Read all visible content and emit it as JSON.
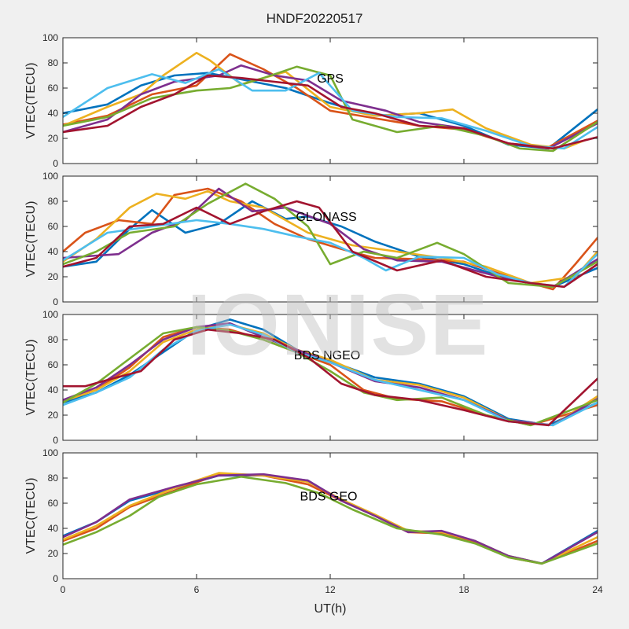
{
  "figure_title": "HNDF20220517",
  "watermark": "IONISE",
  "chart_data": [
    {
      "type": "line",
      "annotation": "GPS",
      "ylabel": "VTEC(TECU)",
      "xlabel": "",
      "xlim": [
        0,
        24
      ],
      "ylim": [
        0,
        100
      ],
      "xticks": [
        0,
        6,
        12,
        18,
        24
      ],
      "yticks": [
        0,
        20,
        40,
        60,
        80,
        100
      ],
      "grid": false,
      "series": [
        {
          "color": "#0072BD",
          "x": [
            0,
            2,
            3.5,
            5,
            6.5,
            8,
            10,
            12,
            14,
            16,
            18,
            20,
            21.8,
            24
          ],
          "y": [
            40,
            47,
            62,
            70,
            72,
            67,
            60,
            48,
            38,
            40,
            30,
            15,
            12,
            43
          ]
        },
        {
          "color": "#D95319",
          "x": [
            0,
            2,
            4,
            6,
            7.5,
            9,
            10.5,
            12,
            14,
            16,
            18,
            20,
            21.8,
            24
          ],
          "y": [
            31,
            38,
            55,
            62,
            87,
            75,
            60,
            42,
            36,
            30,
            27,
            16,
            13,
            34
          ]
        },
        {
          "color": "#EDB120",
          "x": [
            0,
            2,
            3.5,
            4.5,
            6,
            6.6,
            8,
            10,
            12,
            14,
            16,
            17.5,
            19,
            21,
            22.5,
            23.5
          ],
          "y": [
            30,
            45,
            55,
            70,
            88,
            82,
            63,
            73,
            45,
            38,
            40,
            43,
            28,
            15,
            12,
            19
          ]
        },
        {
          "color": "#7E2F8E",
          "x": [
            0,
            2,
            3.5,
            5,
            7,
            8,
            9.5,
            11,
            12.5,
            14.5,
            16,
            18,
            20,
            21.8,
            24
          ],
          "y": [
            25,
            35,
            55,
            65,
            70,
            78,
            70,
            66,
            50,
            42,
            33,
            28,
            16,
            12,
            32
          ]
        },
        {
          "color": "#77AC30",
          "x": [
            0,
            2,
            4,
            6,
            7.5,
            9,
            10.5,
            12,
            13,
            15,
            17,
            19,
            20.5,
            22,
            24
          ],
          "y": [
            30,
            37,
            52,
            58,
            60,
            68,
            77,
            70,
            35,
            25,
            30,
            22,
            12,
            10,
            33
          ]
        },
        {
          "color": "#4DBEEE",
          "x": [
            0,
            2,
            4,
            5.5,
            7,
            8.5,
            10,
            11.5,
            13,
            15,
            17,
            19,
            21,
            22.5,
            24
          ],
          "y": [
            37,
            60,
            71,
            64,
            75,
            58,
            58,
            72,
            42,
            37,
            36,
            26,
            14,
            12,
            29
          ]
        },
        {
          "color": "#A2142F",
          "x": [
            0,
            2,
            3.5,
            5,
            6.5,
            8,
            9.5,
            11,
            12.5,
            14,
            16,
            18,
            20,
            22,
            24
          ],
          "y": [
            25,
            30,
            45,
            55,
            70,
            68,
            65,
            62,
            45,
            40,
            30,
            28,
            16,
            12,
            21
          ]
        }
      ]
    },
    {
      "type": "line",
      "annotation": "GLONASS",
      "ylabel": "VTEC(TECU)",
      "xlabel": "",
      "xlim": [
        0,
        24
      ],
      "ylim": [
        0,
        100
      ],
      "xticks": [
        0,
        6,
        12,
        18,
        24
      ],
      "yticks": [
        0,
        20,
        40,
        60,
        80,
        100
      ],
      "grid": false,
      "series": [
        {
          "color": "#0072BD",
          "x": [
            0,
            1.5,
            3,
            4,
            5.5,
            7,
            8.5,
            10,
            11,
            12.5,
            14,
            16,
            18,
            20,
            22,
            24
          ],
          "y": [
            28,
            32,
            58,
            73,
            55,
            62,
            80,
            66,
            68,
            60,
            48,
            36,
            30,
            18,
            12,
            27
          ]
        },
        {
          "color": "#D95319",
          "x": [
            0,
            1,
            2.5,
            4,
            5,
            6.5,
            8,
            9.5,
            11,
            12.5,
            14,
            16,
            18,
            20,
            22,
            23,
            24
          ],
          "y": [
            40,
            55,
            65,
            62,
            85,
            90,
            80,
            62,
            50,
            42,
            35,
            34,
            32,
            20,
            10,
            30,
            51
          ]
        },
        {
          "color": "#EDB120",
          "x": [
            0,
            1.5,
            3,
            4.2,
            5.5,
            6.5,
            7.5,
            9,
            11,
            13,
            15,
            17,
            19,
            21,
            23,
            24
          ],
          "y": [
            32,
            50,
            75,
            86,
            82,
            88,
            80,
            75,
            55,
            45,
            40,
            35,
            28,
            15,
            20,
            40
          ]
        },
        {
          "color": "#7E2F8E",
          "x": [
            0,
            2.5,
            4,
            5.5,
            7,
            8.5,
            10,
            12,
            13.5,
            15,
            17,
            18.5,
            20,
            22,
            24
          ],
          "y": [
            35,
            38,
            55,
            65,
            90,
            72,
            75,
            62,
            42,
            33,
            32,
            25,
            18,
            12,
            34
          ]
        },
        {
          "color": "#77AC30",
          "x": [
            0,
            1.5,
            3,
            5,
            6.5,
            8.2,
            9.5,
            11,
            12,
            13.5,
            15,
            16.8,
            18,
            20,
            22,
            24
          ],
          "y": [
            30,
            40,
            55,
            60,
            78,
            94,
            82,
            60,
            30,
            40,
            35,
            47,
            38,
            15,
            12,
            32
          ]
        },
        {
          "color": "#4DBEEE",
          "x": [
            0,
            2,
            4,
            6,
            7.5,
            9,
            10.5,
            12,
            13.5,
            14.5,
            16,
            18,
            19.5,
            21,
            22.5,
            24
          ],
          "y": [
            33,
            55,
            60,
            65,
            62,
            58,
            52,
            47,
            35,
            25,
            36,
            35,
            22,
            15,
            12,
            38
          ]
        },
        {
          "color": "#A2142F",
          "x": [
            0,
            1.5,
            3,
            4.5,
            6,
            7.5,
            9,
            10.5,
            11.5,
            13,
            15,
            17,
            19,
            21,
            22.5,
            24
          ],
          "y": [
            28,
            35,
            60,
            62,
            75,
            62,
            72,
            80,
            75,
            40,
            25,
            33,
            20,
            15,
            12,
            30
          ]
        }
      ]
    },
    {
      "type": "line",
      "annotation": "BDS NGEO",
      "ylabel": "VTEC(TECU)",
      "xlabel": "",
      "xlim": [
        0,
        24
      ],
      "ylim": [
        0,
        100
      ],
      "xticks": [
        0,
        6,
        12,
        18,
        24
      ],
      "yticks": [
        0,
        20,
        40,
        60,
        80,
        100
      ],
      "grid": false,
      "series": [
        {
          "color": "#0072BD",
          "x": [
            0,
            1.5,
            3,
            4.5,
            6,
            7.5,
            9,
            10.5,
            12,
            14,
            16,
            18,
            20,
            21.8,
            24
          ],
          "y": [
            30,
            38,
            52,
            70,
            88,
            96,
            88,
            72,
            63,
            50,
            45,
            35,
            17,
            12,
            30
          ]
        },
        {
          "color": "#D95319",
          "x": [
            0,
            1.5,
            3,
            4.5,
            6,
            7.5,
            9,
            10.5,
            12,
            13.5,
            15,
            17,
            19,
            21,
            24
          ],
          "y": [
            32,
            40,
            58,
            82,
            90,
            88,
            80,
            70,
            60,
            40,
            33,
            31,
            20,
            12,
            28
          ]
        },
        {
          "color": "#EDB120",
          "x": [
            0,
            1.5,
            3,
            4.5,
            6,
            7.5,
            9,
            10.5,
            12,
            14,
            16,
            18,
            20,
            22,
            24
          ],
          "y": [
            31,
            40,
            55,
            78,
            88,
            92,
            85,
            72,
            64,
            48,
            44,
            34,
            16,
            12,
            35
          ]
        },
        {
          "color": "#7E2F8E",
          "x": [
            0,
            1.5,
            3,
            4.5,
            6,
            7.5,
            9,
            10.5,
            12,
            14,
            16,
            18,
            20,
            22,
            24
          ],
          "y": [
            32,
            42,
            60,
            80,
            90,
            93,
            82,
            72,
            62,
            47,
            42,
            32,
            16,
            12,
            33
          ]
        },
        {
          "color": "#77AC30",
          "x": [
            0,
            1.5,
            3,
            4.5,
            6,
            7.5,
            9,
            10.5,
            12,
            13.5,
            15,
            17,
            19,
            21,
            24
          ],
          "y": [
            30,
            45,
            65,
            85,
            90,
            87,
            80,
            70,
            55,
            38,
            32,
            34,
            20,
            12,
            32
          ]
        },
        {
          "color": "#4DBEEE",
          "x": [
            0,
            1.5,
            3,
            4.5,
            6,
            7.5,
            9,
            10.5,
            12,
            14,
            16,
            18,
            20,
            22,
            24
          ],
          "y": [
            28,
            38,
            50,
            72,
            87,
            92,
            84,
            70,
            62,
            48,
            40,
            32,
            15,
            12,
            30
          ]
        },
        {
          "color": "#A2142F",
          "x": [
            0,
            1,
            2,
            3.5,
            5,
            6.5,
            8,
            9.5,
            11,
            12.5,
            14,
            16,
            18,
            20,
            21.8,
            24
          ],
          "y": [
            43,
            43,
            48,
            55,
            80,
            88,
            85,
            80,
            66,
            45,
            36,
            32,
            24,
            15,
            12,
            49
          ]
        }
      ]
    },
    {
      "type": "line",
      "annotation": "BDS GEO",
      "ylabel": "VTEC(TECU)",
      "xlabel": "UT(h)",
      "xlim": [
        0,
        24
      ],
      "ylim": [
        0,
        100
      ],
      "xticks": [
        0,
        6,
        12,
        18,
        24
      ],
      "yticks": [
        0,
        20,
        40,
        60,
        80,
        100
      ],
      "grid": false,
      "series": [
        {
          "color": "#0072BD",
          "x": [
            0,
            1.5,
            3,
            5,
            7,
            9,
            11,
            12.5,
            14,
            15.5,
            17,
            18.5,
            20,
            21.5,
            24
          ],
          "y": [
            34,
            45,
            62,
            72,
            82,
            82,
            78,
            62,
            50,
            38,
            37,
            30,
            18,
            12,
            38
          ]
        },
        {
          "color": "#D95319",
          "x": [
            0,
            1.5,
            3,
            5,
            7,
            9,
            11,
            12.5,
            14,
            15.5,
            17,
            18.5,
            20,
            21.5,
            24
          ],
          "y": [
            30,
            40,
            57,
            70,
            83,
            82,
            75,
            62,
            50,
            37,
            36,
            29,
            17,
            12,
            30
          ]
        },
        {
          "color": "#EDB120",
          "x": [
            0,
            1.5,
            3,
            5,
            7,
            9,
            11,
            12.5,
            14,
            15.5,
            17,
            18.5,
            20,
            21.5,
            24
          ],
          "y": [
            31,
            42,
            58,
            72,
            84,
            82,
            77,
            63,
            51,
            38,
            37,
            30,
            18,
            12,
            33
          ]
        },
        {
          "color": "#7E2F8E",
          "x": [
            0,
            1.5,
            3,
            5,
            7,
            9,
            11,
            12.5,
            14,
            15.5,
            17,
            18.5,
            20,
            21.5,
            24
          ],
          "y": [
            33,
            45,
            63,
            73,
            82,
            83,
            78,
            62,
            50,
            37,
            38,
            30,
            18,
            12,
            37
          ]
        },
        {
          "color": "#77AC30",
          "x": [
            0,
            1.5,
            3,
            4.3,
            6,
            8,
            10,
            11.5,
            13,
            15,
            17,
            18.5,
            20,
            21.5,
            24
          ],
          "y": [
            27,
            37,
            50,
            65,
            75,
            81,
            76,
            68,
            55,
            40,
            35,
            28,
            17,
            12,
            28
          ]
        }
      ]
    }
  ]
}
